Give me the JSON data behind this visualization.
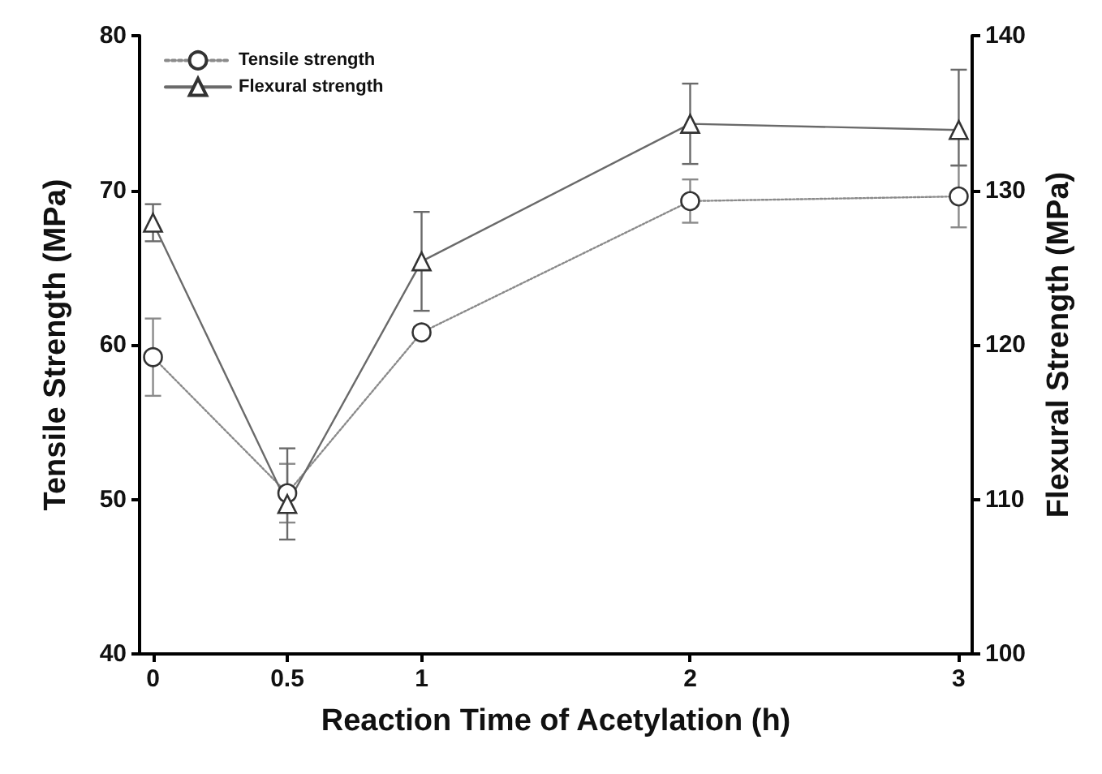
{
  "chart_data": {
    "type": "line",
    "xlabel": "Reaction Time of Acetylation (h)",
    "ylabel": "Tensile Strength (MPa)",
    "y2label": "Flexural Strength (MPa)",
    "x": [
      0,
      0.5,
      1,
      2,
      3
    ],
    "xlim": [
      -0.05,
      3.05
    ],
    "xticks": [
      0,
      0.5,
      1,
      2,
      3
    ],
    "ylim": [
      40,
      80
    ],
    "yticks": [
      40,
      50,
      60,
      70,
      80
    ],
    "y2lim": [
      100,
      140
    ],
    "y2ticks": [
      100,
      110,
      120,
      130,
      140
    ],
    "grid": false,
    "legend": "top left",
    "series": [
      {
        "name": "Tensile strength",
        "color": "#8a8a8a",
        "marker": "circle",
        "line_style": "dotted",
        "values": [
          59.2,
          50.4,
          60.8,
          69.3,
          69.6
        ],
        "errors": [
          2.5,
          1.9,
          null,
          1.4,
          2
        ]
      },
      {
        "name": "Flexural strength",
        "color": "#6a6a6a",
        "marker": "triangle",
        "line_style": "solid",
        "axis": "y2",
        "values": [
          127.9,
          109.7,
          125.4,
          134.3,
          133.9
        ],
        "errors": [
          1.2,
          [
            107.4,
            113.3
          ],
          3.2,
          2.6,
          [
            131.6,
            137.8
          ]
        ]
      }
    ]
  }
}
